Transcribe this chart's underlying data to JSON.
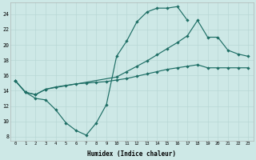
{
  "xlabel": "Humidex (Indice chaleur)",
  "xlim": [
    -0.5,
    23.5
  ],
  "ylim": [
    7.5,
    25.5
  ],
  "yticks": [
    8,
    10,
    12,
    14,
    16,
    18,
    20,
    22,
    24
  ],
  "xticks": [
    0,
    1,
    2,
    3,
    4,
    5,
    6,
    7,
    8,
    9,
    10,
    11,
    12,
    13,
    14,
    15,
    16,
    17,
    18,
    19,
    20,
    21,
    22,
    23
  ],
  "bg_color": "#cde8e6",
  "line_color": "#1e6e65",
  "grid_color": "#b8d8d5",
  "line_A": {
    "x": [
      0,
      1,
      2,
      3,
      4,
      5,
      6,
      7,
      8,
      9,
      10,
      11,
      12,
      13,
      14,
      15,
      16,
      17
    ],
    "y": [
      15.3,
      13.8,
      13.0,
      12.8,
      11.5,
      9.8,
      8.8,
      8.2,
      9.8,
      12.2,
      18.5,
      20.5,
      23.0,
      24.3,
      24.8,
      24.8,
      25.0,
      23.2
    ]
  },
  "line_B": {
    "x": [
      0,
      1,
      2,
      3,
      4,
      5,
      6,
      7,
      8,
      9,
      10,
      11,
      12,
      13,
      14,
      15,
      16,
      17,
      18,
      19,
      20,
      21,
      22,
      23
    ],
    "y": [
      15.3,
      13.8,
      13.5,
      14.2,
      14.5,
      14.7,
      14.9,
      15.0,
      15.1,
      15.2,
      15.4,
      15.6,
      15.9,
      16.2,
      16.5,
      16.8,
      17.0,
      17.2,
      17.4,
      17.0,
      17.0,
      17.0,
      17.0,
      17.0
    ]
  },
  "line_C": {
    "x": [
      0,
      1,
      2,
      3,
      10,
      11,
      12,
      13,
      14,
      15,
      16,
      17,
      18,
      19,
      20,
      21,
      22,
      23
    ],
    "y": [
      15.3,
      13.8,
      13.5,
      14.2,
      15.8,
      16.5,
      17.2,
      17.9,
      18.7,
      19.5,
      20.3,
      21.2,
      23.2,
      21.0,
      21.0,
      19.3,
      18.8,
      18.5
    ]
  }
}
